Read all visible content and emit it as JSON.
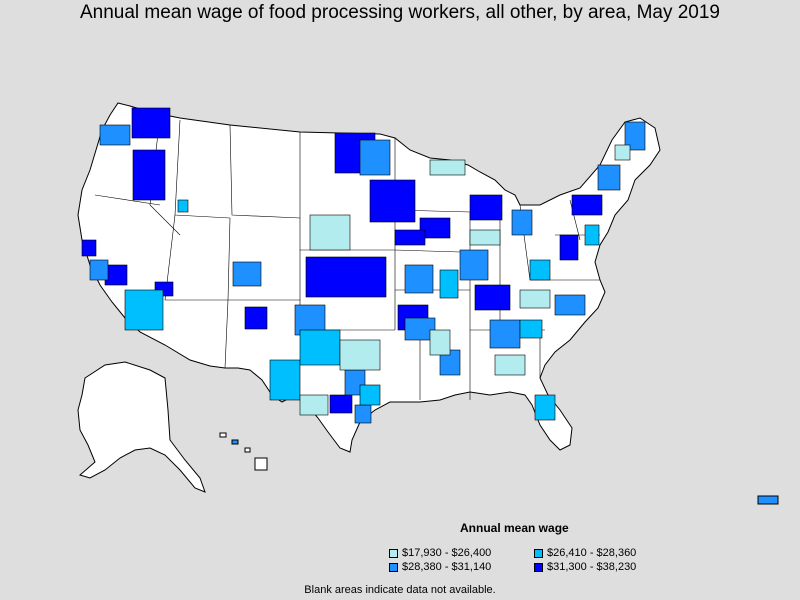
{
  "title": "Annual mean wage of food processing workers, all other, by area, May 2019",
  "legend": {
    "title": "Annual mean wage",
    "items": [
      {
        "label": "$17,930 - $26,400",
        "color": "#b3ecee"
      },
      {
        "label": "$26,410 - $28,360",
        "color": "#00bfff"
      },
      {
        "label": "$28,380 - $31,140",
        "color": "#1e90ff"
      },
      {
        "label": "$31,300 - $38,230",
        "color": "#0000ff"
      }
    ]
  },
  "footnote": "Blank areas indicate data not available.",
  "colors": {
    "background": "#dedede",
    "land": "#ffffff",
    "border": "#000000"
  }
}
